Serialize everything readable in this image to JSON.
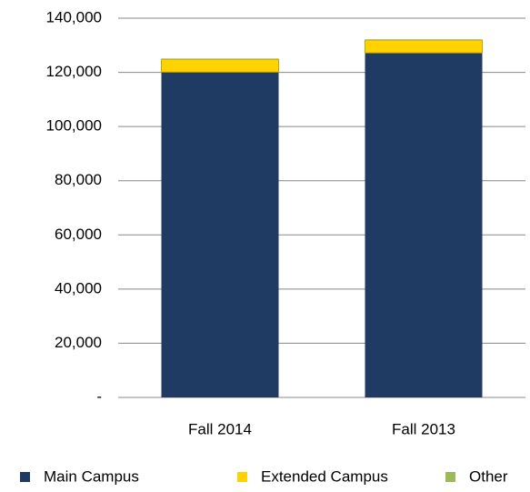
{
  "chart_data": {
    "type": "stacked_bar",
    "categories": [
      "Fall 2014",
      "Fall 2013"
    ],
    "series": [
      {
        "name": "Main Campus",
        "color": "#1f3a63",
        "values": [
          120100,
          127200
        ]
      },
      {
        "name": "Extended Campus",
        "color": "#ffd200",
        "values": [
          4700,
          4700
        ]
      },
      {
        "name": "Other",
        "color": "#9bbb59",
        "values": [
          300,
          300
        ]
      }
    ],
    "ylim": [
      0,
      140000
    ],
    "yticks": [
      {
        "value": 0,
        "label": "-"
      },
      {
        "value": 20000,
        "label": "20,000"
      },
      {
        "value": 40000,
        "label": "40,000"
      },
      {
        "value": 60000,
        "label": "60,000"
      },
      {
        "value": 80000,
        "label": "80,000"
      },
      {
        "value": 100000,
        "label": "100,000"
      },
      {
        "value": 120000,
        "label": "120,000"
      },
      {
        "value": 140000,
        "label": "140,000"
      }
    ],
    "grid": true,
    "legend": "bottom"
  }
}
